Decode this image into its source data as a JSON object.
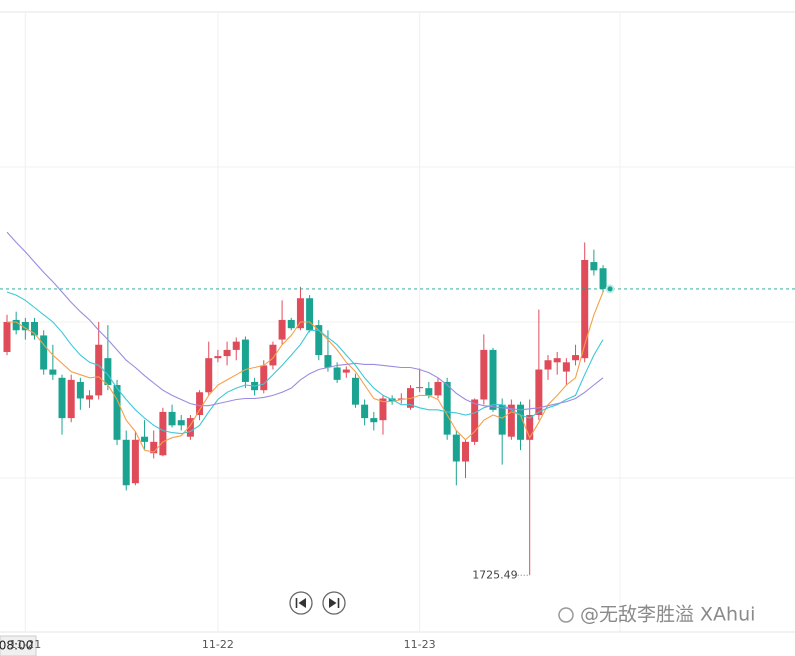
{
  "chart_data": {
    "type": "candlestick",
    "categories": [
      null,
      null,
      "11-21",
      null,
      null,
      null,
      null,
      null,
      null,
      null,
      null,
      null,
      null,
      null,
      null,
      null,
      null,
      null,
      null,
      null,
      null,
      null,
      null,
      "11-22",
      null,
      null,
      null,
      null,
      null,
      null,
      null,
      null,
      null,
      null,
      null,
      null,
      null,
      null,
      null,
      null,
      null,
      null,
      null,
      null,
      null,
      "11-23",
      null,
      null,
      null,
      null,
      null,
      null,
      null,
      null,
      null,
      null,
      null,
      null,
      null,
      null,
      null,
      null,
      null,
      null,
      null,
      null
    ],
    "open": [
      1747.1,
      1750.2,
      1750.0,
      1750.0,
      1748.7,
      1745.4,
      1744.6,
      1740.7,
      1744.2,
      1742.5,
      1742.9,
      1746.5,
      1743.9,
      1738.6,
      1734.4,
      1738.9,
      1737.3,
      1737.1,
      1741.3,
      1740.5,
      1738.9,
      1741.0,
      1743.2,
      1746.5,
      1746.7,
      1747.3,
      1748.3,
      1744.2,
      1743.4,
      1745.8,
      1748.3,
      1750.2,
      1749.4,
      1752.3,
      1749.7,
      1746.8,
      1745.6,
      1745.1,
      1744.6,
      1742.0,
      1740.7,
      1740.5,
      1742.6,
      1742.5,
      1741.7,
      1743.6,
      1743.6,
      1742.9,
      1744.2,
      1739.1,
      1736.5,
      1738.4,
      1742.5,
      1747.3,
      1742.0,
      1738.9,
      1742.0,
      1738.6,
      1741.0,
      1745.4,
      1746.1,
      1745.2,
      1746.3,
      1746.5,
      1755.8,
      1755.2
    ],
    "high": [
      1750.7,
      1751.0,
      1750.4,
      1750.4,
      1749.2,
      1747.8,
      1744.9,
      1744.9,
      1744.6,
      1743.4,
      1750.0,
      1749.7,
      1744.4,
      1739.5,
      1739.4,
      1740.5,
      1739.5,
      1741.7,
      1742.0,
      1741.0,
      1741.0,
      1743.4,
      1748.1,
      1747.3,
      1748.1,
      1748.5,
      1748.6,
      1744.6,
      1746.3,
      1748.1,
      1752.1,
      1750.4,
      1753.4,
      1752.6,
      1750.2,
      1749.2,
      1746.1,
      1745.7,
      1745.0,
      1742.5,
      1741.3,
      1742.9,
      1742.9,
      1743.1,
      1743.9,
      1745.5,
      1744.2,
      1744.6,
      1744.6,
      1739.5,
      1738.6,
      1742.6,
      1748.8,
      1747.5,
      1742.6,
      1742.5,
      1742.3,
      1742.5,
      1751.2,
      1746.8,
      1747.1,
      1746.5,
      1747.8,
      1757.7,
      1757.0,
      1755.5
    ],
    "low": [
      1746.8,
      1748.8,
      1748.3,
      1748.3,
      1744.9,
      1744.4,
      1739.1,
      1740.3,
      1741.5,
      1741.7,
      1742.5,
      1743.4,
      1738.1,
      1733.7,
      1734.2,
      1737.6,
      1736.8,
      1737.0,
      1739.8,
      1739.5,
      1738.6,
      1740.5,
      1742.9,
      1746.1,
      1745.8,
      1746.3,
      1743.6,
      1742.9,
      1743.1,
      1745.4,
      1747.8,
      1749.2,
      1749.2,
      1749.0,
      1746.3,
      1745.2,
      1744.1,
      1744.6,
      1741.7,
      1740.0,
      1739.5,
      1739.1,
      1742.0,
      1742.1,
      1741.5,
      1743.2,
      1742.6,
      1742.6,
      1738.6,
      1734.2,
      1734.9,
      1738.1,
      1742.0,
      1741.3,
      1736.2,
      1738.6,
      1737.6,
      1725.49,
      1740.5,
      1744.4,
      1744.9,
      1743.9,
      1745.8,
      1746.1,
      1754.5,
      1752.9
    ],
    "close": [
      1750.0,
      1749.2,
      1749.2,
      1748.7,
      1745.4,
      1744.9,
      1740.7,
      1744.4,
      1742.6,
      1742.9,
      1747.8,
      1743.9,
      1738.6,
      1734.2,
      1738.6,
      1738.4,
      1738.4,
      1741.3,
      1740.0,
      1740.0,
      1740.7,
      1743.2,
      1746.5,
      1746.7,
      1747.3,
      1748.1,
      1744.2,
      1743.4,
      1745.8,
      1747.8,
      1750.2,
      1749.4,
      1752.3,
      1749.2,
      1746.8,
      1745.6,
      1744.4,
      1745.4,
      1742.0,
      1740.7,
      1740.3,
      1742.6,
      1742.3,
      1742.6,
      1743.6,
      1743.7,
      1742.9,
      1744.2,
      1739.1,
      1736.5,
      1738.4,
      1742.5,
      1747.3,
      1741.5,
      1739.1,
      1742.0,
      1738.6,
      1741.0,
      1745.4,
      1746.3,
      1746.5,
      1746.1,
      1746.8,
      1756.0,
      1755.0,
      1753.2
    ],
    "up_color": "#e04b5a",
    "down_color": "#1aa391",
    "series": [
      {
        "color": "#f5a04a",
        "values": [
          1750.0,
          1750.0,
          1749.4,
          1748.9,
          1747.8,
          1746.8,
          1746.0,
          1745.2,
          1744.9,
          1744.6,
          1744.7,
          1743.9,
          1742.5,
          1740.5,
          1739.4,
          1737.6,
          1737.4,
          1738.4,
          1738.8,
          1739.0,
          1740.0,
          1741.5,
          1742.9,
          1743.9,
          1744.4,
          1744.9,
          1745.4,
          1745.6,
          1745.8,
          1746.5,
          1747.8,
          1748.7,
          1750.0,
          1750.0,
          1749.2,
          1748.3,
          1747.3,
          1746.1,
          1745.2,
          1743.9,
          1742.6,
          1742.3,
          1742.3,
          1742.5,
          1742.6,
          1742.9,
          1742.9,
          1742.5,
          1741.0,
          1739.5,
          1738.6,
          1739.4,
          1740.5,
          1741.0,
          1740.7,
          1741.3,
          1741.0,
          1738.8,
          1740.3,
          1742.0,
          1742.9,
          1743.9,
          1744.6,
          1747.8,
          1750.7,
          1752.9
        ]
      },
      {
        "color": "#3cc8d8",
        "values": [
          1752.9,
          1752.6,
          1752.1,
          1751.4,
          1750.7,
          1750.0,
          1749.0,
          1747.8,
          1746.8,
          1746.1,
          1745.8,
          1744.9,
          1743.6,
          1742.5,
          1741.5,
          1740.7,
          1740.0,
          1739.5,
          1739.3,
          1739.2,
          1739.4,
          1740.0,
          1741.3,
          1742.5,
          1743.2,
          1743.6,
          1743.9,
          1743.8,
          1744.0,
          1744.9,
          1745.8,
          1746.8,
          1747.8,
          1749.2,
          1749.2,
          1748.5,
          1747.8,
          1746.8,
          1745.8,
          1744.6,
          1743.6,
          1742.9,
          1742.5,
          1742.0,
          1742.0,
          1741.7,
          1741.5,
          1741.5,
          1741.3,
          1741.2,
          1741.0,
          1741.2,
          1741.7,
          1742.0,
          1742.0,
          1741.5,
          1741.0,
          1740.7,
          1741.3,
          1741.7,
          1742.0,
          1742.5,
          1742.9,
          1744.9,
          1746.8,
          1748.3
        ]
      },
      {
        "color": "#9b8be0",
        "values": [
          1758.7,
          1757.7,
          1756.8,
          1755.8,
          1754.8,
          1753.9,
          1752.9,
          1751.9,
          1751.0,
          1750.2,
          1749.2,
          1748.3,
          1747.3,
          1746.3,
          1745.6,
          1744.8,
          1744.1,
          1743.4,
          1742.9,
          1742.5,
          1742.1,
          1741.9,
          1741.9,
          1742.1,
          1742.3,
          1742.5,
          1742.6,
          1742.6,
          1742.7,
          1742.9,
          1743.2,
          1743.6,
          1744.4,
          1745.0,
          1745.4,
          1745.6,
          1745.8,
          1745.9,
          1746.0,
          1745.9,
          1745.9,
          1745.8,
          1745.7,
          1745.6,
          1745.6,
          1745.4,
          1745.1,
          1744.6,
          1743.9,
          1743.1,
          1742.5,
          1742.1,
          1741.9,
          1741.8,
          1741.7,
          1741.6,
          1741.5,
          1741.6,
          1741.7,
          1741.9,
          1742.1,
          1742.3,
          1742.6,
          1743.2,
          1743.9,
          1744.6
        ]
      }
    ],
    "ylim": [
      1720,
      1780
    ],
    "crosshair_label": "08:00",
    "watermark": "@无敌李胜溢 XAhui"
  }
}
